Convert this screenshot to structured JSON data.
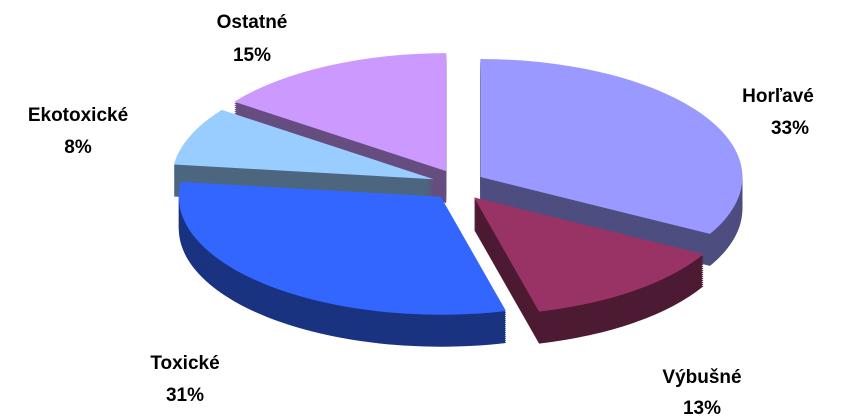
{
  "chart_data": {
    "type": "pie",
    "categories": [
      "Horľavé",
      "Výbušné",
      "Toxické",
      "Ekotoxické",
      "Ostatné"
    ],
    "values": [
      33,
      13,
      31,
      8,
      15
    ],
    "value_labels": [
      "33%",
      "13%",
      "31%",
      "8%",
      "15%"
    ],
    "colors": [
      "#9999ff",
      "#993366",
      "#3366ff",
      "#99ccff",
      "#cc99ff"
    ],
    "three_d": true,
    "exploded": true
  }
}
